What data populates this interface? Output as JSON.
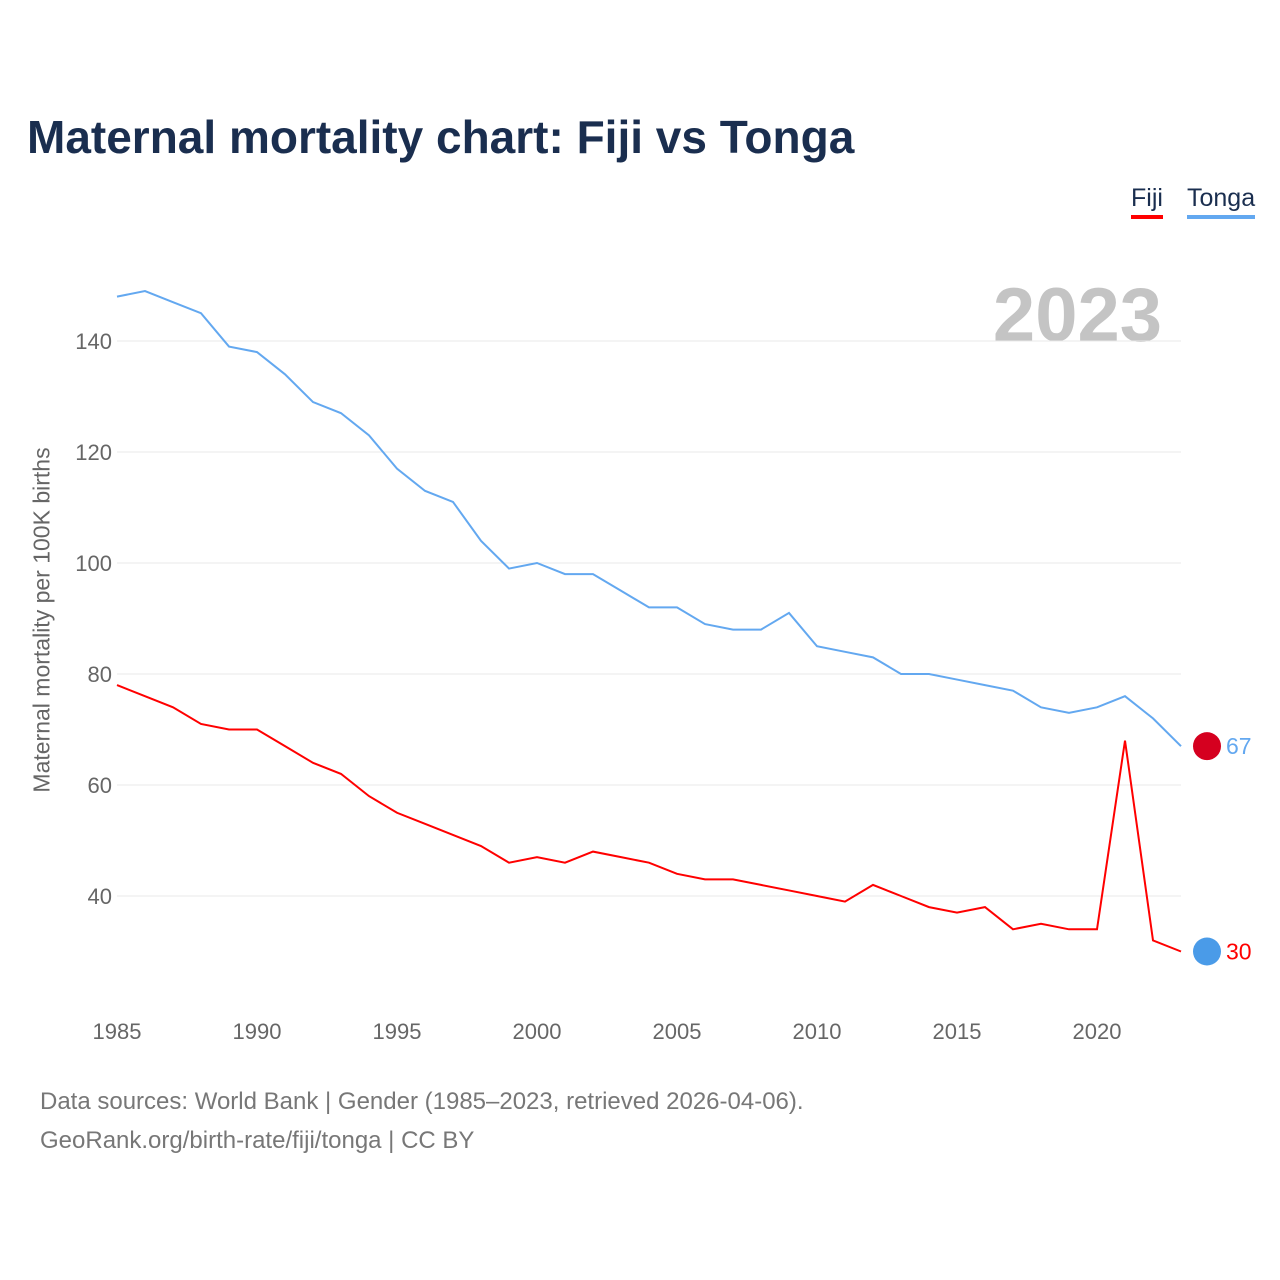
{
  "chart_data": {
    "type": "line",
    "title": "Maternal mortality chart: Fiji vs Tonga",
    "ylabel": "Maternal mortality per 100K births",
    "xlabel": "",
    "year_label": "2023",
    "ylim": [
      20,
      150
    ],
    "xlim": [
      1985,
      2023
    ],
    "yticks": [
      40,
      60,
      80,
      100,
      120,
      140
    ],
    "xticks": [
      1985,
      1990,
      1995,
      2000,
      2005,
      2010,
      2015,
      2020
    ],
    "grid": true,
    "legend_position": "top-right",
    "x": [
      1985,
      1986,
      1987,
      1988,
      1989,
      1990,
      1991,
      1992,
      1993,
      1994,
      1995,
      1996,
      1997,
      1998,
      1999,
      2000,
      2001,
      2002,
      2003,
      2004,
      2005,
      2006,
      2007,
      2008,
      2009,
      2010,
      2011,
      2012,
      2013,
      2014,
      2015,
      2016,
      2017,
      2018,
      2019,
      2020,
      2021,
      2022,
      2023
    ],
    "series": [
      {
        "name": "Fiji",
        "color": "#ff0000",
        "end_label": "30",
        "values": [
          78,
          76,
          74,
          71,
          70,
          70,
          67,
          64,
          62,
          58,
          55,
          53,
          51,
          49,
          46,
          47,
          46,
          48,
          47,
          46,
          44,
          43,
          43,
          42,
          41,
          40,
          39,
          42,
          40,
          38,
          37,
          38,
          34,
          35,
          34,
          34,
          68,
          32,
          30
        ]
      },
      {
        "name": "Tonga",
        "color": "#63a8f0",
        "end_label": "67",
        "values": [
          148,
          149,
          147,
          145,
          139,
          138,
          134,
          129,
          127,
          123,
          117,
          113,
          111,
          104,
          99,
          100,
          98,
          98,
          95,
          92,
          92,
          89,
          88,
          88,
          91,
          85,
          84,
          83,
          80,
          80,
          79,
          78,
          77,
          74,
          73,
          74,
          76,
          72,
          67
        ]
      }
    ]
  },
  "footer": {
    "line1": "Data sources: World Bank | Gender (1985–2023, retrieved 2026-04-06).",
    "line2": "GeoRank.org/birth-rate/fiji/tonga | CC BY"
  }
}
